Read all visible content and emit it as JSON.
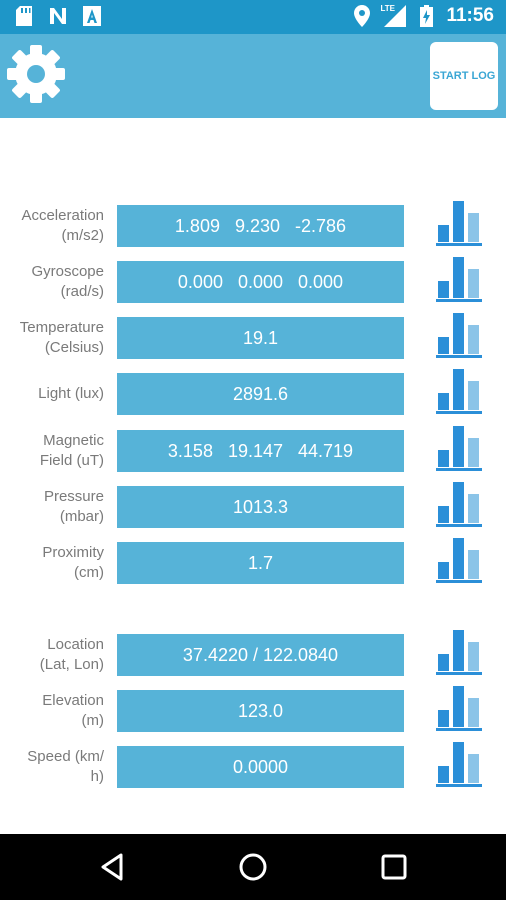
{
  "status_bar": {
    "time": "11:56",
    "icons": [
      "sd-card-icon",
      "n-notification-icon",
      "a-notification-icon",
      "location-icon",
      "lte-signal-icon",
      "battery-charging-icon"
    ],
    "lte_label": "LTE"
  },
  "app_bar": {
    "start_log_label": "START LOG",
    "accent_color": "#56b3d8",
    "settings_icon": "gear-icon"
  },
  "sensors": [
    {
      "label": "Acceleration\n(m/s2)",
      "value": "1.809   9.230   -2.786"
    },
    {
      "label": "Gyroscope\n(rad/s)",
      "value": "0.000   0.000   0.000"
    },
    {
      "label": "Temperature\n(Celsius)",
      "value": "19.1"
    },
    {
      "label": "Light (lux)",
      "value": "2891.6"
    },
    {
      "label": "Magnetic\nField (uT)",
      "value": "3.158   19.147   44.719"
    },
    {
      "label": "Pressure\n(mbar)",
      "value": "1013.3"
    },
    {
      "label": "Proximity\n(cm)",
      "value": "1.7"
    },
    {
      "label": "Location\n(Lat, Lon)",
      "value": "37.4220 / 122.0840"
    },
    {
      "label": "Elevation\n(m)",
      "value": "123.0"
    },
    {
      "label": "Speed (km/\nh)",
      "value": "0.0000"
    }
  ],
  "nav_bar": {
    "icons": [
      "back-icon",
      "home-icon",
      "recents-icon"
    ]
  }
}
